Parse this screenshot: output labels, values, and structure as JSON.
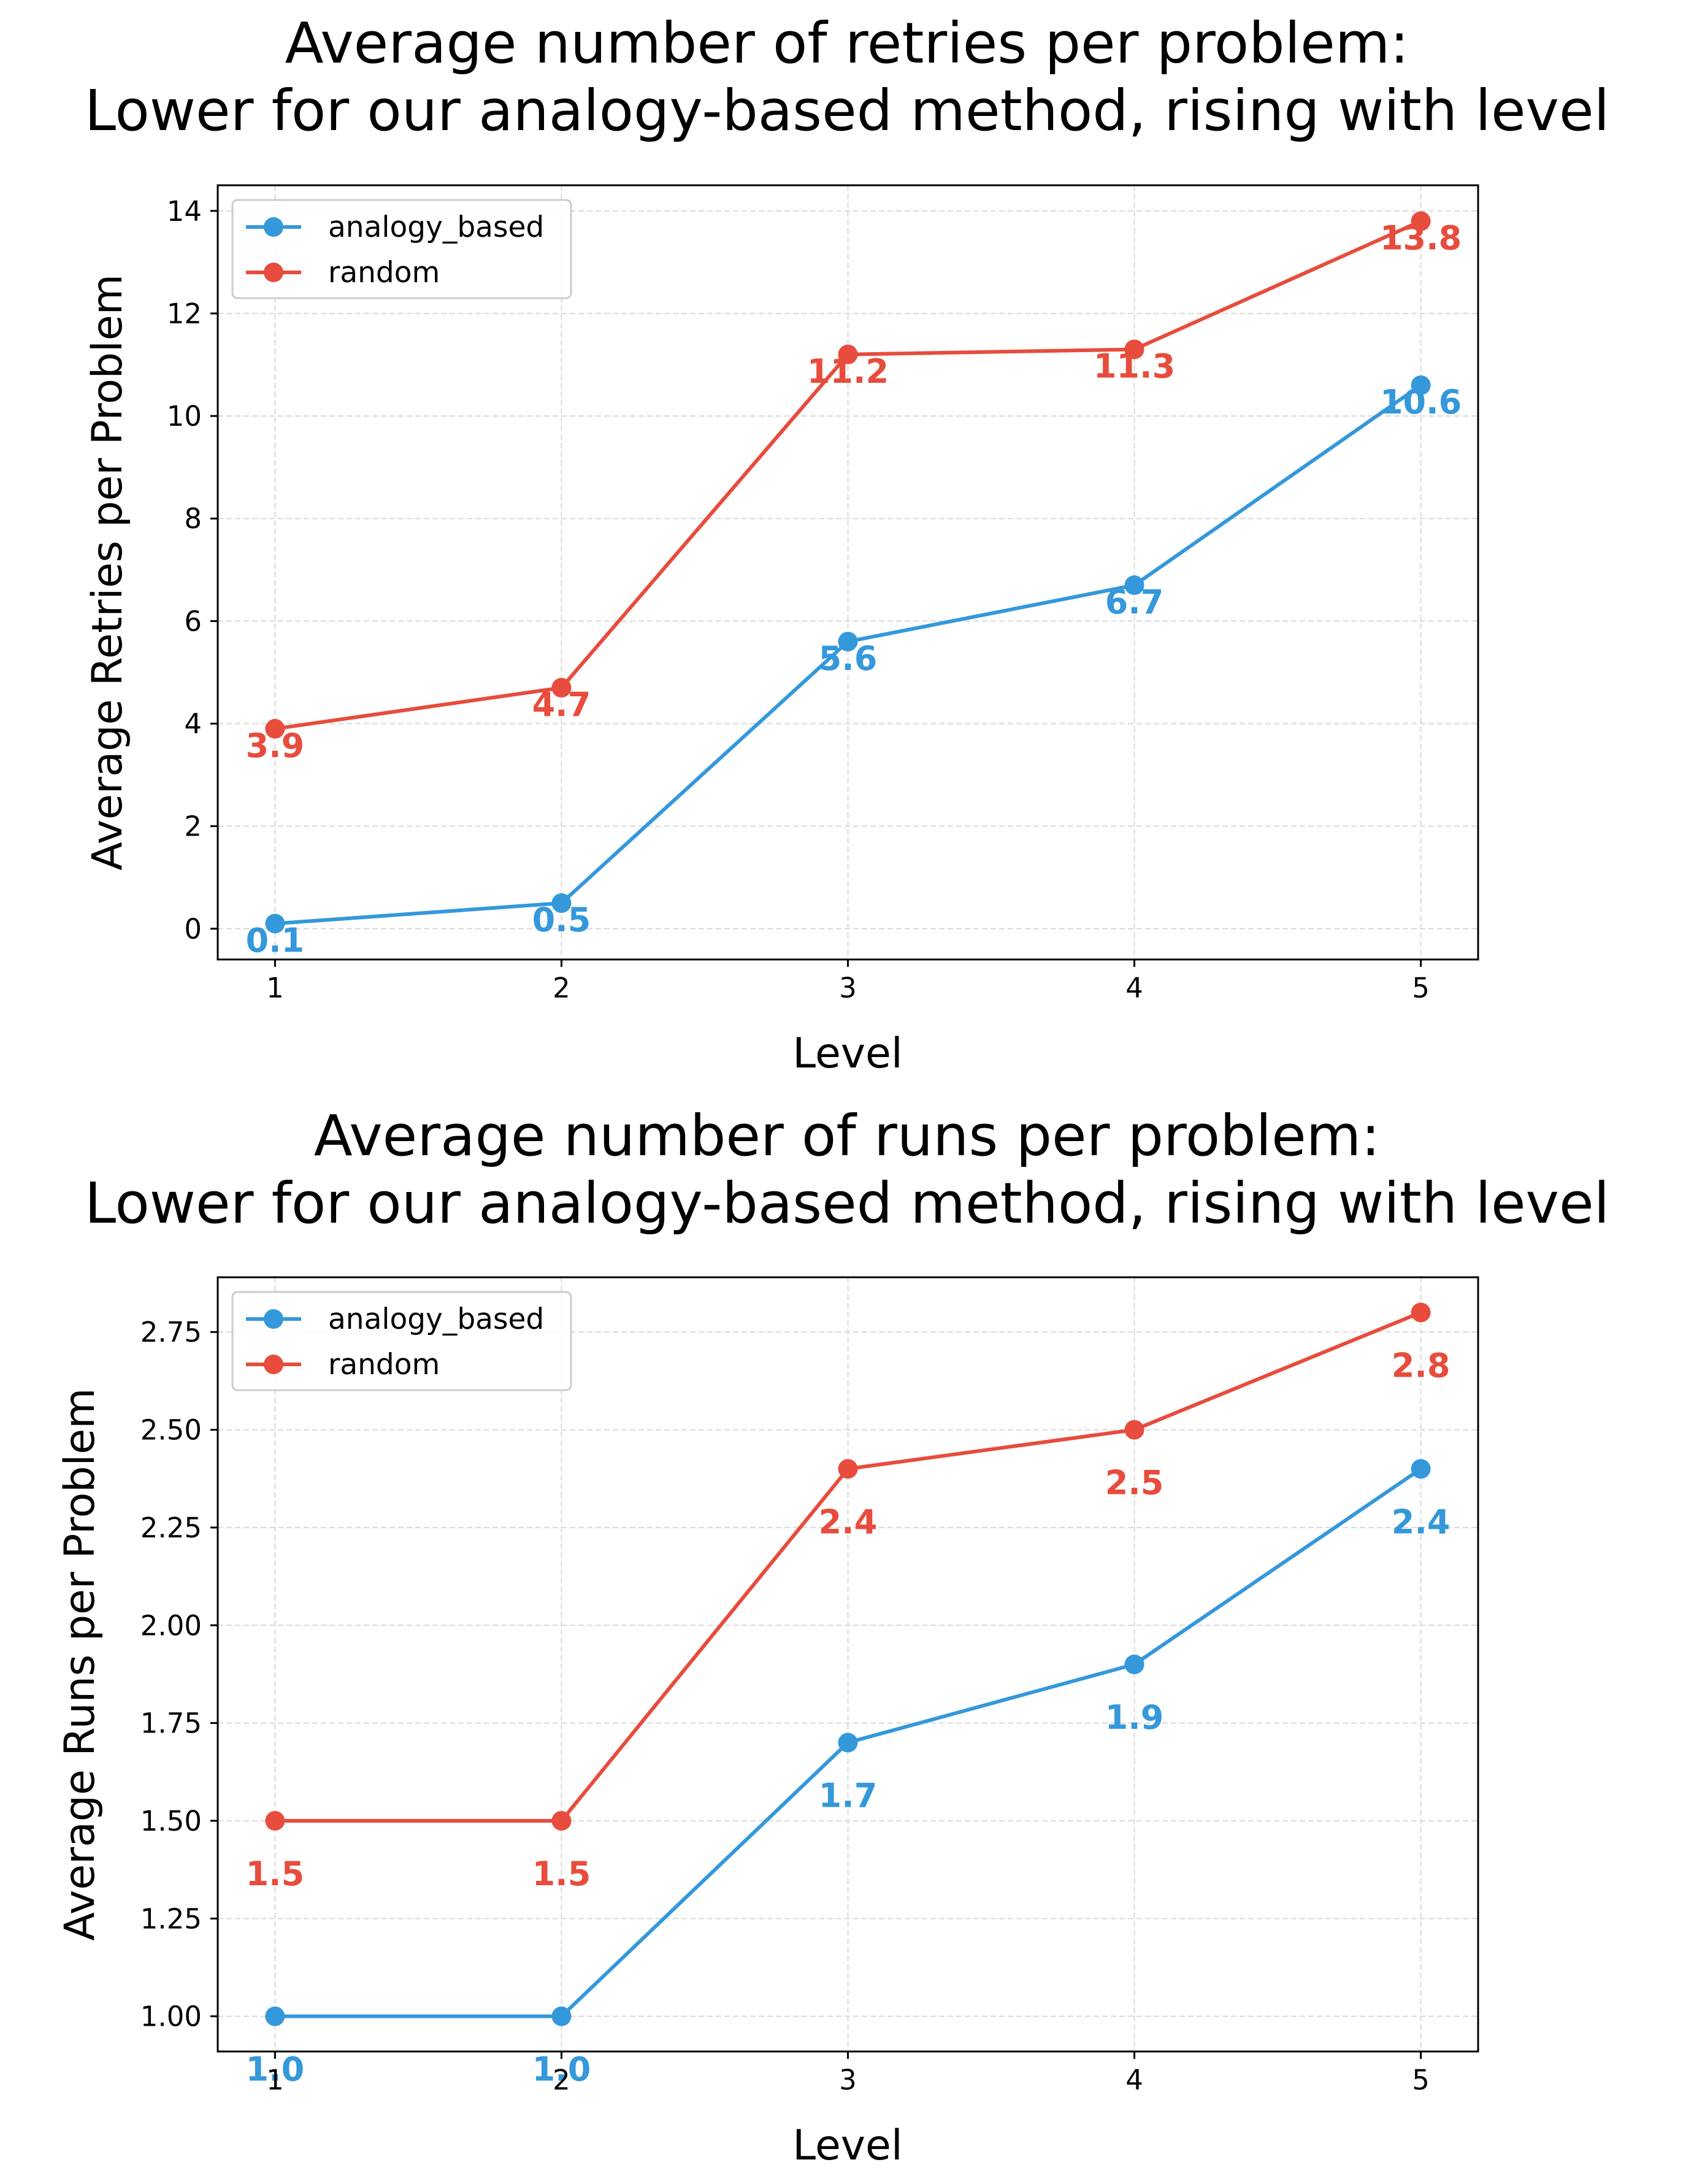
{
  "colors": {
    "analogy_based": "#3498db",
    "random": "#e74c3c",
    "grid": "#d9d9d9"
  },
  "chart_data": [
    {
      "type": "line",
      "title_lines": [
        "Average number of retries per problem:",
        "Lower for our analogy-based method, rising with level"
      ],
      "xlabel": "Level",
      "ylabel": "Average Retries per Problem",
      "x": [
        1,
        2,
        3,
        4,
        5
      ],
      "xticks": [
        "1",
        "2",
        "3",
        "4",
        "5"
      ],
      "xlim": [
        0.8,
        5.2
      ],
      "ylim": [
        -0.6,
        14.5
      ],
      "yticks": [
        0,
        2,
        4,
        6,
        8,
        10,
        12,
        14
      ],
      "ytick_labels": [
        "0",
        "2",
        "4",
        "6",
        "8",
        "10",
        "12",
        "14"
      ],
      "grid": true,
      "legend_position": "upper-left",
      "series": [
        {
          "name": "analogy_based",
          "color_key": "analogy_based",
          "values": [
            0.1,
            0.5,
            5.6,
            6.7,
            10.6
          ],
          "labels": [
            "0.1",
            "0.5",
            "5.6",
            "6.7",
            "10.6"
          ]
        },
        {
          "name": "random",
          "color_key": "random",
          "values": [
            3.9,
            4.7,
            11.2,
            11.3,
            13.8
          ],
          "labels": [
            "3.9",
            "4.7",
            "11.2",
            "11.3",
            "13.8"
          ]
        }
      ]
    },
    {
      "type": "line",
      "title_lines": [
        "Average number of runs per problem:",
        "Lower for our analogy-based method, rising with level"
      ],
      "xlabel": "Level",
      "ylabel": "Average Runs per Problem",
      "x": [
        1,
        2,
        3,
        4,
        5
      ],
      "xticks": [
        "1",
        "2",
        "3",
        "4",
        "5"
      ],
      "xlim": [
        0.8,
        5.2
      ],
      "ylim": [
        0.91,
        2.89
      ],
      "yticks": [
        1.0,
        1.25,
        1.5,
        1.75,
        2.0,
        2.25,
        2.5,
        2.75
      ],
      "ytick_labels": [
        "1.00",
        "1.25",
        "1.50",
        "1.75",
        "2.00",
        "2.25",
        "2.50",
        "2.75"
      ],
      "grid": true,
      "legend_position": "upper-left",
      "series": [
        {
          "name": "analogy_based",
          "color_key": "analogy_based",
          "values": [
            1.0,
            1.0,
            1.7,
            1.9,
            2.4
          ],
          "labels": [
            "1.0",
            "1.0",
            "1.7",
            "1.9",
            "2.4"
          ]
        },
        {
          "name": "random",
          "color_key": "random",
          "values": [
            1.5,
            1.5,
            2.4,
            2.5,
            2.8
          ],
          "labels": [
            "1.5",
            "1.5",
            "2.4",
            "2.5",
            "2.8"
          ]
        }
      ]
    }
  ]
}
